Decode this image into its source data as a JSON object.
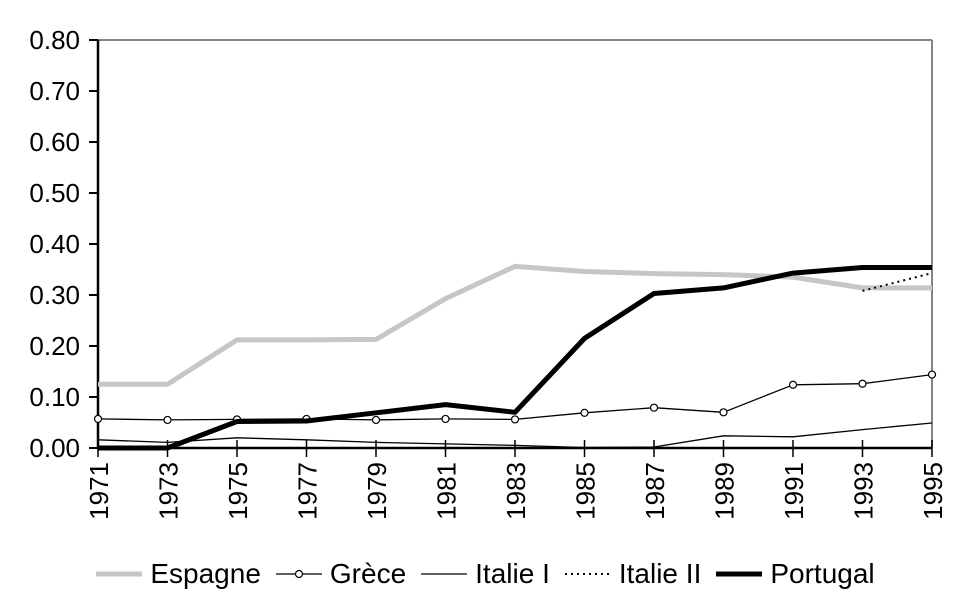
{
  "chart_data": {
    "type": "line",
    "title": "",
    "xlabel": "",
    "ylabel": "",
    "x": [
      1971,
      1973,
      1975,
      1977,
      1979,
      1981,
      1983,
      1985,
      1987,
      1989,
      1991,
      1993,
      1995
    ],
    "x_tick_labels": [
      "1971",
      "1973",
      "1975",
      "1977",
      "1979",
      "1981",
      "1983",
      "1985",
      "1987",
      "1989",
      "1991",
      "1993",
      "1995"
    ],
    "ylim": [
      0.0,
      0.8
    ],
    "y_tick_labels": [
      "0.00",
      "0.10",
      "0.20",
      "0.30",
      "0.40",
      "0.50",
      "0.60",
      "0.70",
      "0.80"
    ],
    "grid": false,
    "legend_position": "bottom",
    "background_color": "#ffffff",
    "axis_color": "#000000",
    "border_color": "#848484",
    "series": [
      {
        "name": "Espagne",
        "color": "#c6c6c6",
        "line_style": "thick",
        "marker": "none",
        "values": [
          0.125,
          0.125,
          0.212,
          0.212,
          0.213,
          0.293,
          0.356,
          0.346,
          0.342,
          0.34,
          0.335,
          0.314,
          0.314
        ]
      },
      {
        "name": "Grèce",
        "color": "#000000",
        "line_style": "thin",
        "marker": "circle",
        "values": [
          0.057,
          0.055,
          0.056,
          0.057,
          0.055,
          0.057,
          0.056,
          0.069,
          0.079,
          0.07,
          0.124,
          0.126,
          0.144
        ]
      },
      {
        "name": "Italie I",
        "color": "#000000",
        "line_style": "thin",
        "marker": "none",
        "values": [
          0.016,
          0.011,
          0.02,
          0.016,
          0.011,
          0.008,
          0.005,
          0.001,
          0.002,
          0.024,
          0.022,
          0.036,
          0.049
        ]
      },
      {
        "name": "Italie II",
        "color": "#000000",
        "line_style": "dotted",
        "marker": "none",
        "values": [
          null,
          null,
          null,
          null,
          null,
          null,
          null,
          null,
          null,
          null,
          null,
          0.308,
          0.343
        ]
      },
      {
        "name": "Portugal",
        "color": "#000000",
        "line_style": "thick",
        "marker": "none",
        "values": [
          0.0,
          0.0,
          0.052,
          0.053,
          0.069,
          0.085,
          0.07,
          0.215,
          0.303,
          0.314,
          0.343,
          0.354,
          0.354
        ]
      }
    ]
  }
}
